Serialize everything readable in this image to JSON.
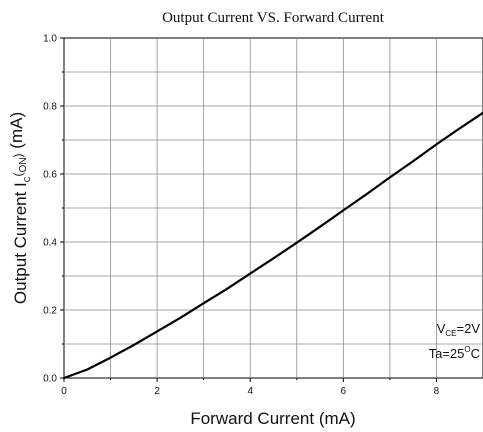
{
  "chart_data": {
    "type": "line",
    "title": "Output Current VS. Forward Current",
    "xlabel": "Forward Current (mA)",
    "ylabel": {
      "main": "Output Current I",
      "sub_c": "C",
      "paren_open": "(",
      "sub_on": "ON",
      "paren_close": ")",
      "unit": " (mA)"
    },
    "xlim": [
      0,
      9
    ],
    "ylim": [
      0,
      1.0
    ],
    "x_ticks": [
      0,
      2,
      4,
      6,
      8
    ],
    "x_tick_labels": [
      "0",
      "2",
      "4",
      "6",
      "8"
    ],
    "y_ticks": [
      0.0,
      0.2,
      0.4,
      0.6,
      0.8,
      1.0
    ],
    "y_tick_labels": [
      "0.0",
      "0.2",
      "0.4",
      "0.6",
      "0.8",
      "1.0"
    ],
    "grid": true,
    "series": [
      {
        "color": "#000000",
        "x": [
          0,
          0.5,
          1,
          1.5,
          2,
          2.5,
          3,
          3.5,
          4,
          4.5,
          5,
          5.5,
          6,
          6.5,
          7,
          7.5,
          8,
          8.5,
          9
        ],
        "y": [
          0.0,
          0.025,
          0.06,
          0.097,
          0.137,
          0.177,
          0.22,
          0.262,
          0.307,
          0.352,
          0.398,
          0.445,
          0.493,
          0.541,
          0.59,
          0.638,
          0.687,
          0.734,
          0.78
        ]
      }
    ],
    "annotations": {
      "vce_main": "V",
      "vce_sub": "CE",
      "vce_value": "=2V",
      "ta_prefix": "Ta=25",
      "ta_degree": "O",
      "ta_unit": "C"
    }
  }
}
